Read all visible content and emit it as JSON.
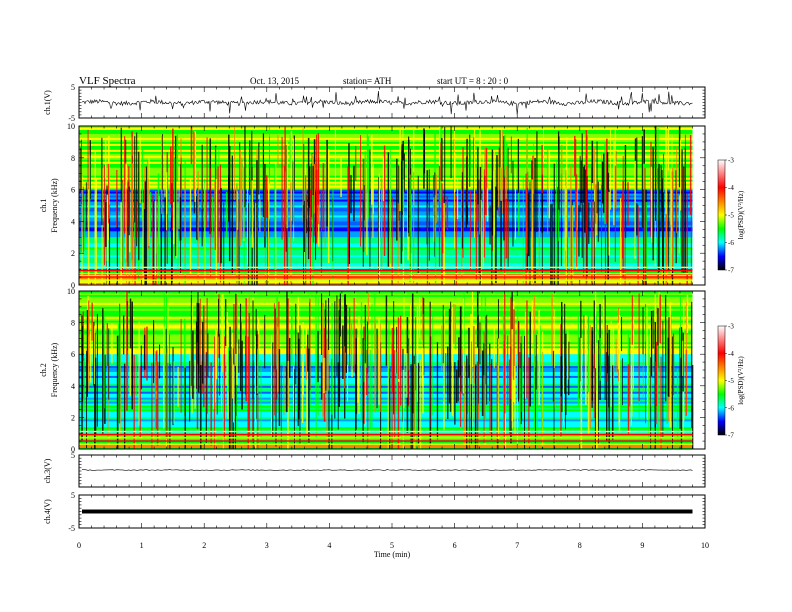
{
  "header": {
    "title": "VLF  Spectra",
    "date": "Oct. 13, 2015",
    "station": "station= ATH",
    "start_ut": "start  UT =   8  : 20 : 0"
  },
  "colors": {
    "spectrogram_scale": [
      "#000000",
      "#0000ff",
      "#00ffff",
      "#00ff00",
      "#ffff00",
      "#ff8000",
      "#ff0000",
      "#ffc0c0",
      "#ffffff"
    ],
    "trace": "#000000"
  },
  "chart_data": [
    {
      "type": "line",
      "panel": "ch1-waveform",
      "ylabel": "ch.1(V)",
      "ylim": [
        -5,
        5
      ],
      "yticks": [
        "5",
        "-5"
      ],
      "xlim": [
        0,
        10
      ],
      "description_values": {
        "mean": 0.0,
        "amplitude_approx": 2.5
      }
    },
    {
      "type": "heatmap",
      "panel": "ch1-spectrogram",
      "ylabel": "ch.1\nFrequency (kHz)",
      "ylabel_channel": "ch.1",
      "ylabel_axis": "Frequency (kHz)",
      "ylim": [
        0,
        10
      ],
      "yticks": [
        "0",
        "2",
        "4",
        "6",
        "8",
        "10"
      ],
      "xlim": [
        0,
        9.8
      ],
      "colorbar": {
        "label": "log(PSD)(V²/Hz)",
        "range": [
          -7,
          -3
        ],
        "ticks": [
          "-3",
          "-4",
          "-5",
          "-6",
          "-7"
        ]
      }
    },
    {
      "type": "heatmap",
      "panel": "ch2-spectrogram",
      "ylabel_channel": "ch.2",
      "ylabel_axis": "Frequency (kHz)",
      "ylim": [
        0,
        10
      ],
      "yticks": [
        "0",
        "2",
        "4",
        "6",
        "8",
        "10"
      ],
      "xlim": [
        0,
        9.8
      ],
      "colorbar": {
        "label": "log(PSD)(V²/Hz)",
        "range": [
          -7,
          -3
        ],
        "ticks": [
          "-3",
          "-4",
          "-5",
          "-6",
          "-7"
        ]
      }
    },
    {
      "type": "line",
      "panel": "ch3-waveform",
      "ylabel": "ch.3(V)",
      "ylim": [
        -5,
        5
      ],
      "yticks": [
        "5"
      ],
      "xlim": [
        0,
        10
      ]
    },
    {
      "type": "line",
      "panel": "ch4-waveform",
      "ylabel": "ch.4(V)",
      "ylim": [
        -5,
        5
      ],
      "yticks": [
        "5",
        "-5"
      ],
      "xlim": [
        0,
        10
      ]
    }
  ],
  "xaxis": {
    "label": "Time  (min)",
    "ticks": [
      "0",
      "1",
      "2",
      "3",
      "4",
      "5",
      "6",
      "7",
      "8",
      "9",
      "10"
    ],
    "range": [
      0,
      10
    ]
  }
}
